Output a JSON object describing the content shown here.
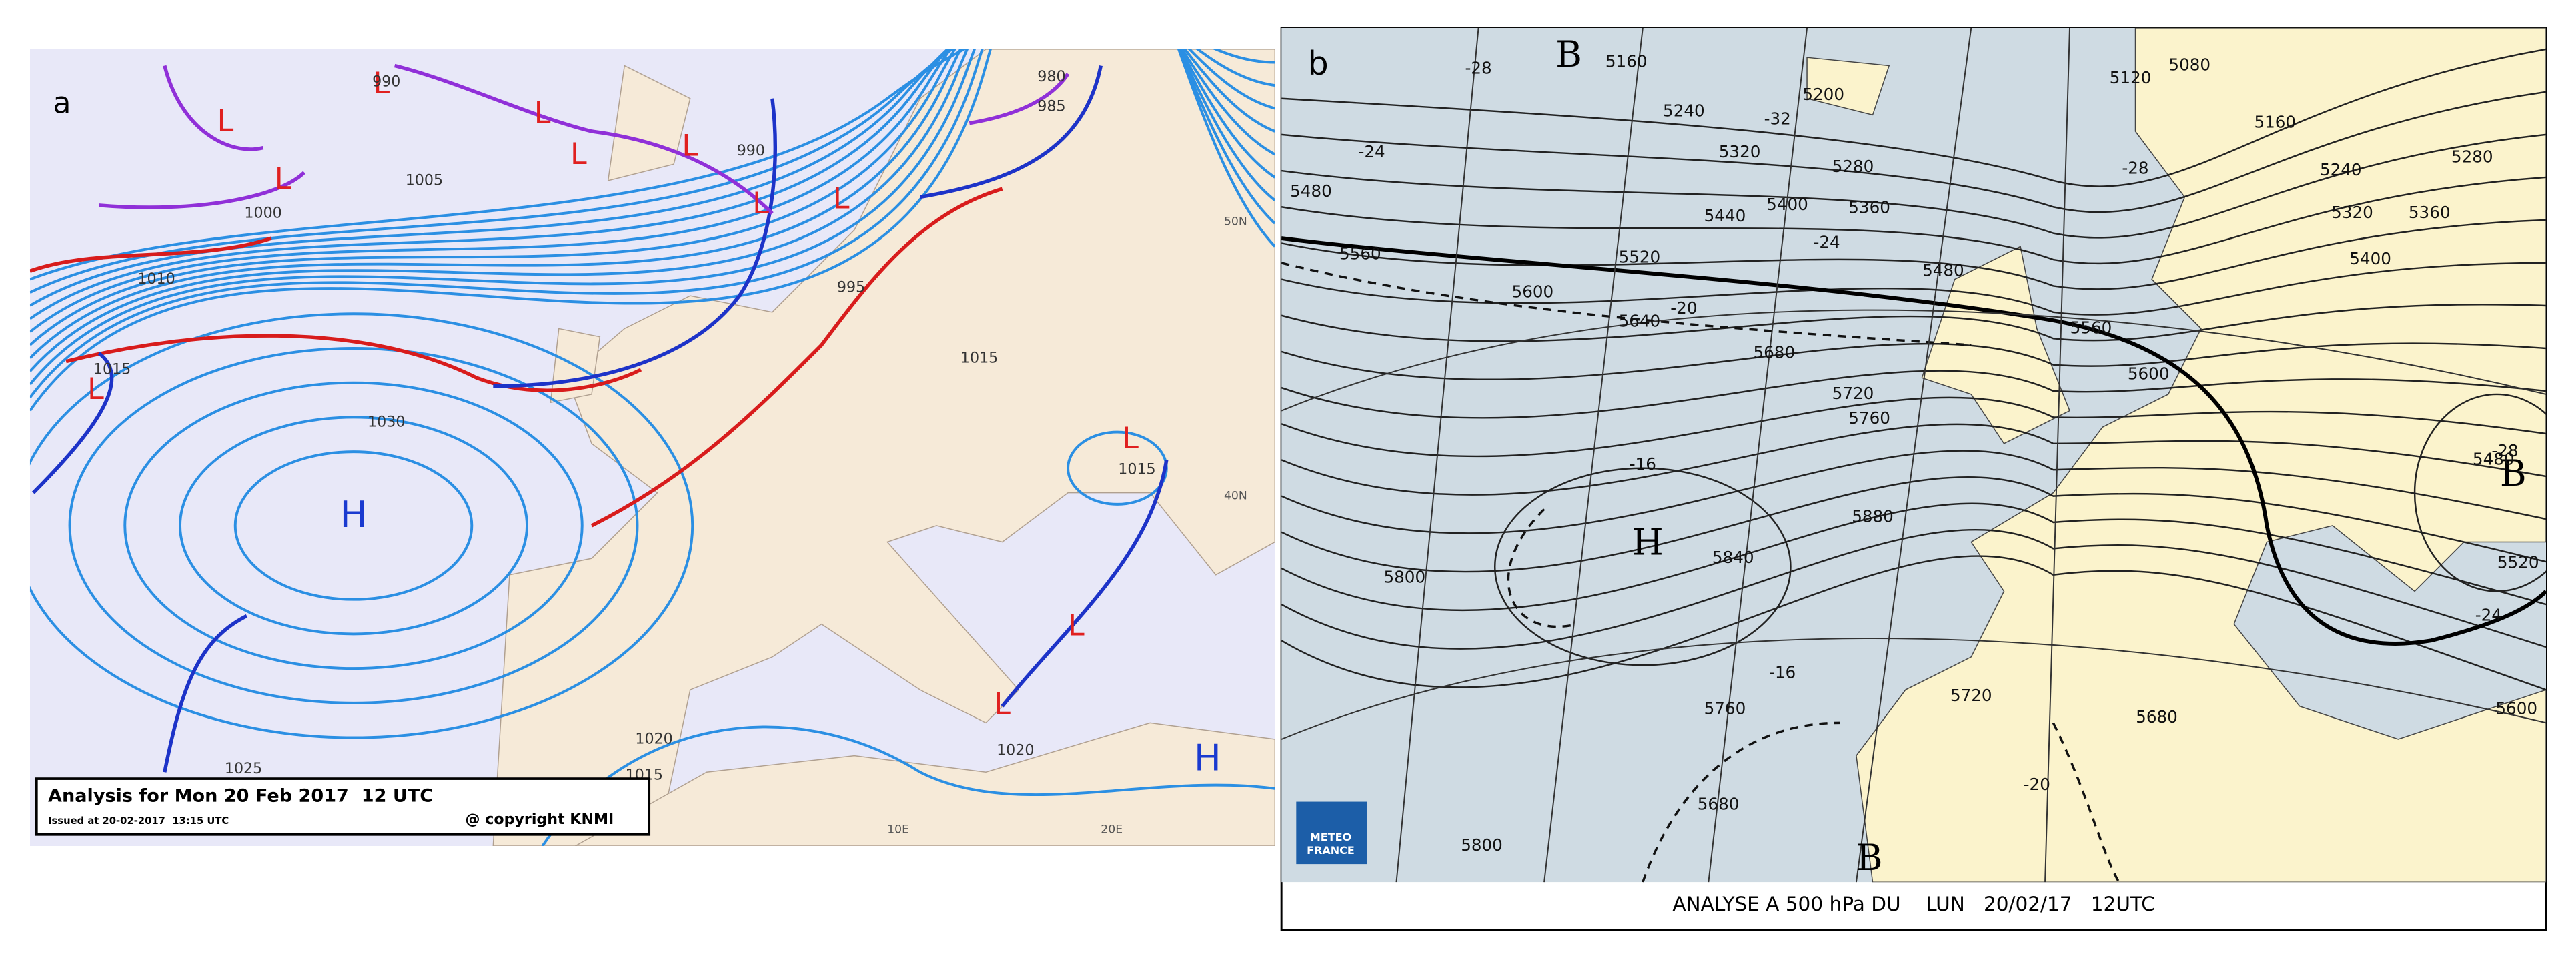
{
  "panel_a": {
    "letter": "a",
    "systems": [
      "L",
      "L",
      "L",
      "L",
      "L",
      "L",
      "L",
      "L",
      "L",
      "L",
      "L",
      "L",
      "H",
      "H"
    ],
    "pressure_labels": [
      "1005",
      "1000",
      "1010",
      "1015",
      "1030",
      "1020",
      "1015",
      "1025",
      "1020",
      "990",
      "990",
      "980",
      "985",
      "995",
      "1015",
      "1015"
    ],
    "lat_labels": [
      "50N",
      "40N"
    ],
    "lon_labels": [
      "10E",
      "20E"
    ],
    "caption": {
      "title": "Analysis for Mon 20 Feb 2017  12 UTC",
      "issued": "Issued at 20-02-2017  13:15 UTC",
      "copyright": "@ copyright KNMI"
    }
  },
  "panel_b": {
    "letter": "b",
    "systems": [
      "B",
      "H",
      "B",
      "B"
    ],
    "geopotential_labels": [
      "5160",
      "5240",
      "5200",
      "5120",
      "5080",
      "5160",
      "5320",
      "5280",
      "5240",
      "5400",
      "5360",
      "5440",
      "5480",
      "5560",
      "5520",
      "5600",
      "5640",
      "5480",
      "5560",
      "5680",
      "5720",
      "5760",
      "5800",
      "5840",
      "5880",
      "5720",
      "5760",
      "5680",
      "5800",
      "5600",
      "5520",
      "5480",
      "5400",
      "5320",
      "5360",
      "5280",
      "5600",
      "5680"
    ],
    "temperature_labels": [
      "-28",
      "-32",
      "-24",
      "-24",
      "-20",
      "-28",
      "-16",
      "-16",
      "-20",
      "-24",
      "-28"
    ],
    "logo": [
      "METEO",
      "FRANCE"
    ],
    "caption": "ANALYSE A 500 hPa DU    LUN   20/02/17   12UTC"
  }
}
